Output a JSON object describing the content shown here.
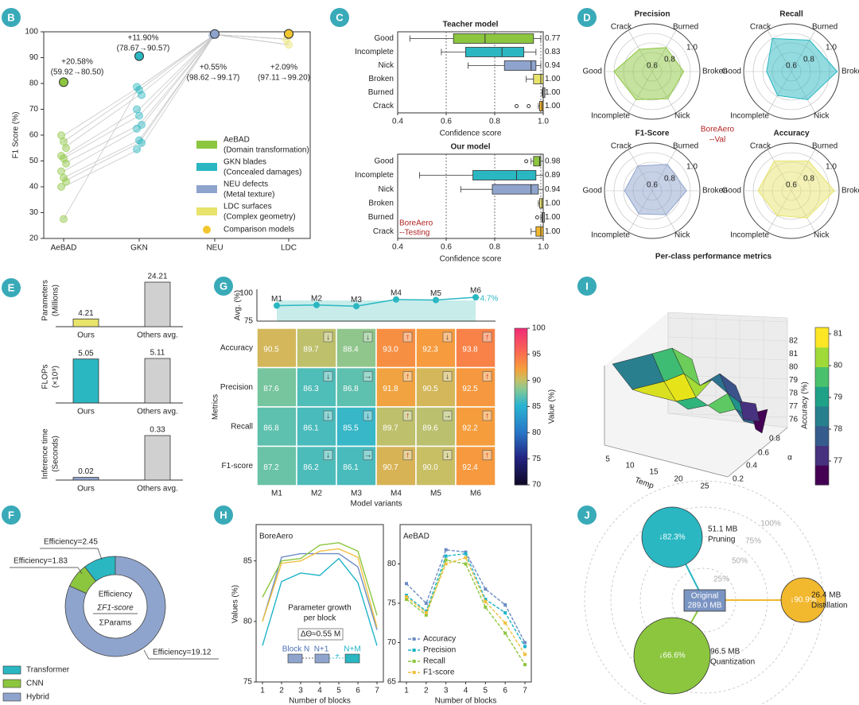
{
  "colors": {
    "aebad": "#8cc63f",
    "gkn": "#2ab7c2",
    "neu": "#8fa4cd",
    "ldc": "#e8e36b",
    "badge": "#39aab8",
    "ldcdot": "#f2c62e"
  },
  "panel_letters": [
    "B",
    "C",
    "D",
    "E",
    "F",
    "G",
    "H",
    "I",
    "J"
  ],
  "chart_data": [
    {
      "panel": "B",
      "type": "scatter",
      "ylabel": "F1 Score (%)",
      "xlabel": "",
      "categories": [
        "AeBAD",
        "GKN",
        "NEU",
        "LDC"
      ],
      "ylim": [
        20,
        100
      ],
      "yticks": [
        "20",
        "30",
        "40",
        "50",
        "60",
        "70",
        "80",
        "90",
        "100"
      ],
      "series": [
        {
          "name": "AeBAD",
          "sub": "(Domain transformation)",
          "ours": 80.5,
          "others": [
            59.92,
            57.5,
            55.0,
            52.0,
            51.0,
            49.0,
            46.0,
            43.5,
            42.0,
            40.0,
            27.5
          ]
        },
        {
          "name": "GKN blades",
          "sub": "(Concealed damages)",
          "ours": 90.57,
          "others": [
            78.67,
            77.5,
            75.5,
            70.0,
            67.5,
            64.0,
            62.5,
            58.0,
            57.0,
            54.5
          ]
        },
        {
          "name": "NEU defects",
          "sub": "(Metal texture)",
          "ours": 99.17,
          "others": [
            98.62
          ]
        },
        {
          "name": "LDC surfaces",
          "sub": "(Complex geometry)",
          "ours": 99.2,
          "others": [
            97.11,
            95.0
          ]
        }
      ],
      "comparison_label": "Comparison models",
      "annotations": [
        {
          "gain": "+20.58%",
          "range": "(59.92→80.50)"
        },
        {
          "gain": "+11.90%",
          "range": "(78.67→90.57)"
        },
        {
          "gain": "+0.55%",
          "range": "(98.62→99.17)"
        },
        {
          "gain": "+2.09%",
          "range": "(97.11→99.20)"
        }
      ]
    },
    {
      "panel": "C",
      "type": "box",
      "title_top": "Teacher model",
      "title_bottom": "Our model",
      "xlabel": "Confidence score",
      "xlim": [
        0.4,
        1.0
      ],
      "xticks": [
        "0.4",
        "0.6",
        "0.8",
        "1.0"
      ],
      "categories": [
        "Good",
        "Incomplete",
        "Nick",
        "Broken",
        "Burned",
        "Crack"
      ],
      "teacher": [
        {
          "min": 0.45,
          "q1": 0.63,
          "med": 0.76,
          "q3": 0.96,
          "max": 0.99,
          "label": "0.77"
        },
        {
          "min": 0.58,
          "q1": 0.68,
          "med": 0.83,
          "q3": 0.92,
          "max": 0.97,
          "label": "0.83"
        },
        {
          "min": 0.69,
          "q1": 0.84,
          "med": 0.95,
          "q3": 0.97,
          "max": 0.99,
          "label": "0.94"
        },
        {
          "min": 0.93,
          "q1": 0.96,
          "med": 0.99,
          "q3": 1.0,
          "max": 1.0,
          "label": "1.00"
        },
        {
          "min": 0.995,
          "q1": 0.997,
          "med": 0.999,
          "q3": 1.0,
          "max": 1.0,
          "label": "1.00"
        },
        {
          "min": 0.98,
          "q1": 0.985,
          "med": 0.995,
          "q3": 1.0,
          "max": 1.0,
          "label": "1.00",
          "outliers": [
            0.89,
            0.94
          ]
        }
      ],
      "student": [
        {
          "min": 0.95,
          "q1": 0.96,
          "med": 0.985,
          "q3": 0.99,
          "max": 1.0,
          "label": "0.98",
          "outliers": [
            0.93
          ]
        },
        {
          "min": 0.49,
          "q1": 0.71,
          "med": 0.89,
          "q3": 0.97,
          "max": 1.0,
          "label": "0.89"
        },
        {
          "min": 0.66,
          "q1": 0.79,
          "med": 0.95,
          "q3": 0.98,
          "max": 1.0,
          "label": "0.94"
        },
        {
          "min": 0.98,
          "q1": 0.985,
          "med": 0.995,
          "q3": 1.0,
          "max": 1.0,
          "label": "1.00"
        },
        {
          "min": 0.99,
          "q1": 0.995,
          "med": 0.998,
          "q3": 1.0,
          "max": 1.0,
          "label": "1.00",
          "outliers": [
            0.975
          ]
        },
        {
          "min": 0.95,
          "q1": 0.97,
          "med": 0.99,
          "q3": 1.0,
          "max": 1.0,
          "label": "1.00"
        }
      ],
      "tag": "BoreAero",
      "tag2": "--Testing"
    },
    {
      "panel": "D",
      "type": "radar",
      "caption": "Per-class performance metrics",
      "center_tag": "BoreAero",
      "center_tag2": "--Val",
      "axes": [
        "Burned",
        "Broken",
        "Nick",
        "Incomplete",
        "Good",
        "Crack"
      ],
      "rings": [
        "0.6",
        "0.8",
        "1.0"
      ],
      "charts": [
        {
          "title": "Precision",
          "values": [
            0.79,
            0.83,
            0.83,
            0.84,
            0.9,
            0.77
          ],
          "color": "#8cc63f"
        },
        {
          "title": "Recall",
          "values": [
            0.88,
            0.98,
            0.84,
            0.79,
            0.76,
            0.9
          ],
          "color": "#2ab7c2"
        },
        {
          "title": "F1-Score",
          "values": [
            0.82,
            0.86,
            0.79,
            0.78,
            0.79,
            0.8
          ],
          "color": "#8fa4cd"
        },
        {
          "title": "Accuracy",
          "values": [
            0.86,
            0.95,
            0.83,
            0.8,
            0.85,
            0.86
          ],
          "color": "#e8e36b"
        }
      ]
    },
    {
      "panel": "E",
      "type": "bar",
      "charts": [
        {
          "ylabel1": "Parameters",
          "ylabel2": "(Millions)",
          "categories": [
            "Ours",
            "Others avg."
          ],
          "values": [
            4.21,
            24.21
          ],
          "labels": [
            "4.21",
            "24.21"
          ],
          "color": "#e8e36b"
        },
        {
          "ylabel1": "FLOPs",
          "ylabel2": "(×10⁹)",
          "categories": [
            "Ours",
            "Others avg."
          ],
          "values": [
            5.05,
            5.11
          ],
          "labels": [
            "5.05",
            "5.11"
          ],
          "color": "#2ab7c2"
        },
        {
          "ylabel1": "Inference time",
          "ylabel2": "(Seconds)",
          "categories": [
            "Ours",
            "Others avg."
          ],
          "values": [
            0.02,
            0.33
          ],
          "labels": [
            "0.02",
            "0.33"
          ],
          "color": "#8fa4cd"
        }
      ]
    },
    {
      "panel": "F",
      "type": "pie",
      "center1": "Efficiency",
      "center2": "ΣF1-score",
      "center3": "ΣParams",
      "slices": [
        {
          "name": "Transformer",
          "value": 2.45,
          "label": "Efficiency=2.45",
          "color": "#2ab7c2"
        },
        {
          "name": "CNN",
          "value": 1.83,
          "label": "Efficiency=1.83",
          "color": "#8cc63f"
        },
        {
          "name": "Hybrid",
          "value": 19.12,
          "label": "Efficiency=19.12",
          "color": "#8fa4cd"
        }
      ]
    },
    {
      "panel": "G",
      "type": "heatmap",
      "xlabel": "Model variants",
      "ylabel": "Metrics",
      "colorbar_label": "Value (%)",
      "cbar_ticks": [
        "70",
        "75",
        "80",
        "85",
        "90",
        "95",
        "100"
      ],
      "top_ylabel": "Avg. (%)",
      "top_yticks": [
        "75",
        "100"
      ],
      "top_gain": "+4.7%",
      "columns": [
        "M1",
        "M2",
        "M3",
        "M4",
        "M5",
        "M6"
      ],
      "rows": [
        "Accuracy",
        "Precision",
        "Recall",
        "F1-score"
      ],
      "values": [
        [
          90.5,
          89.7,
          88.4,
          93.0,
          92.3,
          93.8
        ],
        [
          87.6,
          86.3,
          86.8,
          91.8,
          90.5,
          92.5
        ],
        [
          86.8,
          86.1,
          85.5,
          89.7,
          89.6,
          92.2
        ],
        [
          87.2,
          86.2,
          86.1,
          90.7,
          90.0,
          92.4
        ]
      ],
      "arrows": [
        [
          "",
          "↓",
          "↓",
          "↑",
          "↓",
          "↑"
        ],
        [
          "",
          "↓",
          "→",
          "↑",
          "↓",
          "↑"
        ],
        [
          "",
          "↓",
          "↓",
          "↑",
          "→",
          "↑"
        ],
        [
          "",
          "↓",
          "→",
          "↑",
          "↓",
          "↑"
        ]
      ],
      "top_avg": [
        92.5,
        93.0,
        92.0,
        98.0,
        97.5,
        100.0
      ]
    },
    {
      "panel": "H",
      "type": "line",
      "ylabel": "Values (%)",
      "xlabel": "Number of blocks",
      "x": [
        1,
        2,
        3,
        4,
        5,
        6,
        7
      ],
      "left": {
        "title": "BoreAero",
        "ylim": [
          75,
          88
        ],
        "yticks": [
          "75",
          "80",
          "85"
        ],
        "note1": "Parameter growth",
        "note2": "per block",
        "delta": "ΔΘ≈0.55 M",
        "block_labels": [
          "Block N",
          "N+1",
          "+",
          "N+M"
        ],
        "series": [
          {
            "name": "Accuracy",
            "values": [
              80.0,
              85.3,
              85.6,
              85.6,
              85.6,
              84.5,
              79.3
            ]
          },
          {
            "name": "Precision",
            "values": [
              78.0,
              83.3,
              84.0,
              83.8,
              85.2,
              83.2,
              78.0
            ]
          },
          {
            "name": "Recall",
            "values": [
              82.0,
              85.0,
              85.2,
              86.3,
              86.5,
              85.8,
              80.5
            ]
          },
          {
            "name": "F1-score",
            "values": [
              80.0,
              84.8,
              85.0,
              85.8,
              86.0,
              85.3,
              79.5
            ]
          }
        ]
      },
      "right": {
        "title": "AeBAD",
        "ylim": [
          65,
          85
        ],
        "yticks": [
          "65",
          "70",
          "75",
          "80"
        ],
        "series": [
          {
            "name": "Accuracy",
            "values": [
              77.5,
              75.0,
              81.8,
              81.5,
              76.8,
              74.8,
              70.0
            ]
          },
          {
            "name": "Precision",
            "values": [
              76.0,
              74.0,
              81.0,
              81.3,
              75.5,
              73.8,
              69.5
            ]
          },
          {
            "name": "Recall",
            "values": [
              75.5,
              73.5,
              80.5,
              80.0,
              74.5,
              71.2,
              67.2
            ]
          },
          {
            "name": "F1-score",
            "values": [
              75.8,
              73.8,
              80.0,
              80.8,
              75.2,
              72.5,
              68.5
            ]
          }
        ]
      },
      "colors": [
        "#6c8cc4",
        "#1fb3c7",
        "#8cc63f",
        "#f0c040"
      ]
    },
    {
      "panel": "I",
      "type": "surface",
      "xlabel": "Temp",
      "ylabel": "α",
      "zlabel": "Accuracy (%)",
      "xticks": [
        "5",
        "10",
        "15",
        "20",
        "25"
      ],
      "yticks": [
        "0.2",
        "0.4",
        "0.6",
        "0.8"
      ],
      "zticks": [
        "76",
        "77",
        "78",
        "79",
        "80",
        "81",
        "82"
      ],
      "cbar_ticks": [
        "77",
        "78",
        "79",
        "80",
        "81"
      ]
    },
    {
      "panel": "J",
      "type": "bubble",
      "rings": [
        "25%",
        "50%",
        "75%",
        "100%"
      ],
      "center": {
        "label1": "Original",
        "label2": "289.0 MB"
      },
      "nodes": [
        {
          "name": "Pruning",
          "size": "51.1 MB",
          "pct": "↓82.3%",
          "color": "#2ab7c2"
        },
        {
          "name": "Distillation",
          "size": "26.4 MB",
          "pct": "↓90.9%",
          "color": "#f2b82e"
        },
        {
          "name": "Quantization",
          "size": "96.5 MB",
          "pct": "↓66.6%",
          "color": "#8cc63f"
        }
      ]
    }
  ]
}
